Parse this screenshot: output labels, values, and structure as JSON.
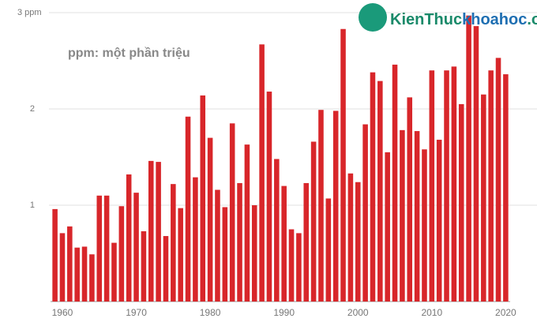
{
  "chart_data": {
    "type": "bar",
    "annotation": "ppm: một phần triệu",
    "watermark": [
      "KienThuc",
      "khoahoc",
      ".org"
    ],
    "color": "#d8262a",
    "x": [
      1959,
      1960,
      1961,
      1962,
      1963,
      1964,
      1965,
      1966,
      1967,
      1968,
      1969,
      1970,
      1971,
      1972,
      1973,
      1974,
      1975,
      1976,
      1977,
      1978,
      1979,
      1980,
      1981,
      1982,
      1983,
      1984,
      1985,
      1986,
      1987,
      1988,
      1989,
      1990,
      1991,
      1992,
      1993,
      1994,
      1995,
      1996,
      1997,
      1998,
      1999,
      2000,
      2001,
      2002,
      2003,
      2004,
      2005,
      2006,
      2007,
      2008,
      2009,
      2010,
      2011,
      2012,
      2013,
      2014,
      2015,
      2016,
      2017,
      2018,
      2019,
      2020
    ],
    "values": [
      0.96,
      0.71,
      0.78,
      0.56,
      0.57,
      0.49,
      1.1,
      1.1,
      0.61,
      0.99,
      1.32,
      1.13,
      0.73,
      1.46,
      1.45,
      0.68,
      1.22,
      0.97,
      1.92,
      1.29,
      2.14,
      1.7,
      1.16,
      0.98,
      1.85,
      1.23,
      1.63,
      1.0,
      2.67,
      2.18,
      1.48,
      1.2,
      0.75,
      0.71,
      1.23,
      1.66,
      1.99,
      1.07,
      1.98,
      2.83,
      1.33,
      1.24,
      1.84,
      2.38,
      2.29,
      1.55,
      2.46,
      1.78,
      2.12,
      1.77,
      1.58,
      2.4,
      1.68,
      2.4,
      2.44,
      2.05,
      2.97,
      2.86,
      2.15,
      2.4,
      2.53,
      2.36
    ],
    "xlim": [
      1958.4,
      2020.6
    ],
    "xticks": [
      1960,
      1970,
      1980,
      1990,
      2000,
      2010,
      2020
    ],
    "ylim": [
      0,
      3
    ],
    "yticks": [
      1,
      2,
      {
        "value": 3,
        "label": "3 ppm"
      }
    ],
    "grid": true
  }
}
